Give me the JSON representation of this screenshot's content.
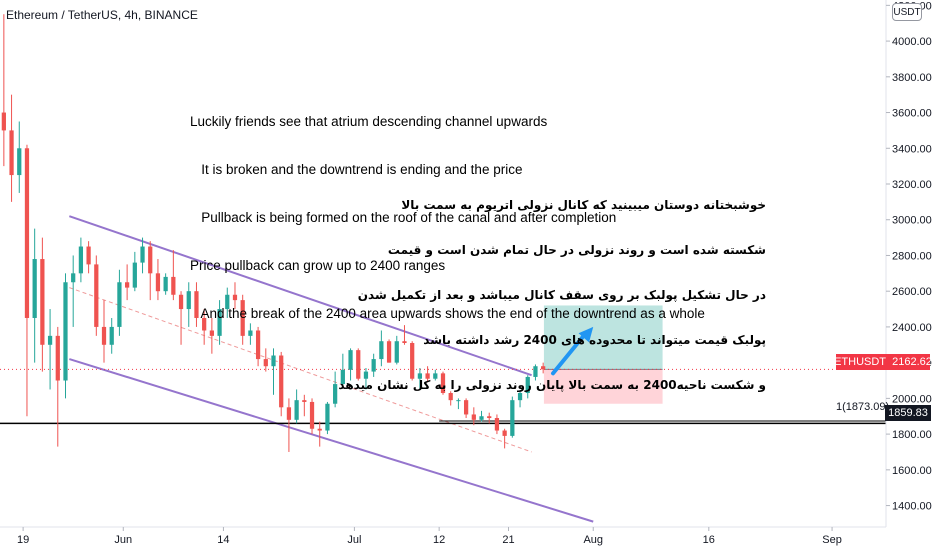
{
  "header": {
    "symbol_title": "Ethereum / TetherUS, 4h, BINANCE",
    "currency_label": "USDT"
  },
  "chart_data": {
    "type": "candlestick",
    "symbol": "Ethereum / TetherUS",
    "interval": "4h",
    "exchange": "BINANCE",
    "currency": "USDT",
    "grid": false,
    "y_ticks": [
      1400,
      1600,
      1800,
      2000,
      2200,
      2400,
      2600,
      2800,
      3000,
      3200,
      3400,
      3600,
      3800,
      4000,
      4200
    ],
    "y_tick_labels": [
      "1400.00",
      "1600.00",
      "1800.00",
      "2000.00",
      "2200.00",
      "2400.00",
      "2600.00",
      "2800.00",
      "3000.00",
      "3200.00",
      "3400.00",
      "3600.00",
      "3800.00",
      "4000.00",
      "4200.00"
    ],
    "x_ticks": [
      {
        "label": "19",
        "date": "2021-05-19"
      },
      {
        "label": "Jun",
        "date": "2021-06-01"
      },
      {
        "label": "14",
        "date": "2021-06-14"
      },
      {
        "label": "Jul",
        "date": "2021-07-01"
      },
      {
        "label": "12",
        "date": "2021-07-12"
      },
      {
        "label": "21",
        "date": "2021-07-21"
      },
      {
        "label": "Aug",
        "date": "2021-08-01"
      },
      {
        "label": "16",
        "date": "2021-08-16"
      },
      {
        "label": "Sep",
        "date": "2021-09-01"
      }
    ],
    "x_range": [
      "2021-05-16",
      "2021-09-08"
    ],
    "y_range": [
      1280,
      4230
    ],
    "candles": [
      [
        "2021-05-16",
        3600,
        4150,
        3300,
        3500
      ],
      [
        "2021-05-17",
        3500,
        3700,
        3100,
        3250
      ],
      [
        "2021-05-18",
        3250,
        3550,
        3150,
        3400
      ],
      [
        "2021-05-19",
        3400,
        3420,
        1900,
        2450
      ],
      [
        "2021-05-20",
        2450,
        2950,
        2200,
        2780
      ],
      [
        "2021-05-21",
        2780,
        2900,
        2150,
        2300
      ],
      [
        "2021-05-22",
        2300,
        2500,
        2050,
        2350
      ],
      [
        "2021-05-23",
        2350,
        2400,
        1730,
        2100
      ],
      [
        "2021-05-24",
        2100,
        2700,
        2000,
        2650
      ],
      [
        "2021-05-25",
        2650,
        2800,
        2400,
        2700
      ],
      [
        "2021-05-26",
        2700,
        2900,
        2650,
        2850
      ],
      [
        "2021-05-27",
        2850,
        2880,
        2700,
        2750
      ],
      [
        "2021-05-28",
        2750,
        2800,
        2350,
        2400
      ],
      [
        "2021-05-29",
        2400,
        2550,
        2200,
        2300
      ],
      [
        "2021-05-30",
        2300,
        2450,
        2250,
        2400
      ],
      [
        "2021-05-31",
        2400,
        2720,
        2350,
        2650
      ],
      [
        "2021-06-01",
        2650,
        2750,
        2550,
        2620
      ],
      [
        "2021-06-02",
        2620,
        2820,
        2600,
        2760
      ],
      [
        "2021-06-03",
        2760,
        2900,
        2700,
        2850
      ],
      [
        "2021-06-04",
        2850,
        2880,
        2550,
        2700
      ],
      [
        "2021-06-05",
        2700,
        2780,
        2550,
        2600
      ],
      [
        "2021-06-06",
        2600,
        2700,
        2580,
        2680
      ],
      [
        "2021-06-07",
        2680,
        2830,
        2550,
        2580
      ],
      [
        "2021-06-08",
        2580,
        2600,
        2300,
        2500
      ],
      [
        "2021-06-09",
        2500,
        2650,
        2400,
        2600
      ],
      [
        "2021-06-10",
        2600,
        2650,
        2400,
        2450
      ],
      [
        "2021-06-11",
        2450,
        2500,
        2300,
        2380
      ],
      [
        "2021-06-12",
        2380,
        2450,
        2250,
        2350
      ],
      [
        "2021-06-13",
        2350,
        2550,
        2300,
        2500
      ],
      [
        "2021-06-14",
        2500,
        2620,
        2450,
        2580
      ],
      [
        "2021-06-15",
        2580,
        2650,
        2500,
        2550
      ],
      [
        "2021-06-16",
        2550,
        2580,
        2300,
        2350
      ],
      [
        "2021-06-17",
        2350,
        2420,
        2300,
        2380
      ],
      [
        "2021-06-18",
        2380,
        2400,
        2180,
        2220
      ],
      [
        "2021-06-19",
        2220,
        2280,
        2150,
        2180
      ],
      [
        "2021-06-20",
        2180,
        2280,
        2020,
        2240
      ],
      [
        "2021-06-21",
        2240,
        2260,
        1900,
        1950
      ],
      [
        "2021-06-22",
        1950,
        2000,
        1700,
        1880
      ],
      [
        "2021-06-23",
        1880,
        2050,
        1860,
        1990
      ],
      [
        "2021-06-24",
        1990,
        2020,
        1900,
        1980
      ],
      [
        "2021-06-25",
        1980,
        2000,
        1800,
        1830
      ],
      [
        "2021-06-26",
        1830,
        1870,
        1730,
        1820
      ],
      [
        "2021-06-27",
        1820,
        1980,
        1800,
        1970
      ],
      [
        "2021-06-28",
        1970,
        2150,
        1950,
        2080
      ],
      [
        "2021-06-29",
        2080,
        2250,
        2060,
        2160
      ],
      [
        "2021-06-30",
        2160,
        2280,
        2100,
        2270
      ],
      [
        "2021-07-01",
        2270,
        2280,
        2100,
        2110
      ],
      [
        "2021-07-02",
        2110,
        2170,
        2050,
        2150
      ],
      [
        "2021-07-03",
        2150,
        2250,
        2120,
        2220
      ],
      [
        "2021-07-04",
        2220,
        2380,
        2180,
        2320
      ],
      [
        "2021-07-05",
        2320,
        2330,
        2200,
        2200
      ],
      [
        "2021-07-06",
        2200,
        2350,
        2190,
        2320
      ],
      [
        "2021-07-07",
        2320,
        2410,
        2300,
        2310
      ],
      [
        "2021-07-08",
        2310,
        2320,
        2100,
        2110
      ],
      [
        "2021-07-09",
        2110,
        2170,
        2050,
        2140
      ],
      [
        "2021-07-10",
        2140,
        2180,
        2090,
        2110
      ],
      [
        "2021-07-11",
        2110,
        2160,
        2100,
        2140
      ],
      [
        "2021-07-12",
        2140,
        2150,
        2020,
        2030
      ],
      [
        "2021-07-13",
        2030,
        2040,
        1960,
        1990
      ],
      [
        "2021-07-14",
        1990,
        2000,
        1940,
        1990
      ],
      [
        "2021-07-15",
        1990,
        2000,
        1890,
        1910
      ],
      [
        "2021-07-16",
        1910,
        1950,
        1850,
        1880
      ],
      [
        "2021-07-17",
        1880,
        1930,
        1870,
        1900
      ],
      [
        "2021-07-18",
        1900,
        1920,
        1860,
        1890
      ],
      [
        "2021-07-19",
        1890,
        1910,
        1800,
        1820
      ],
      [
        "2021-07-20",
        1820,
        1830,
        1720,
        1790
      ],
      [
        "2021-07-21",
        1790,
        2010,
        1780,
        1990
      ],
      [
        "2021-07-22",
        1990,
        2040,
        1950,
        2030
      ],
      [
        "2021-07-23",
        2030,
        2130,
        2000,
        2120
      ],
      [
        "2021-07-24",
        2120,
        2190,
        2100,
        2180
      ],
      [
        "2021-07-25",
        2180,
        2200,
        2140,
        2162.62
      ]
    ],
    "current_price": 2162.62,
    "current_price_label": "2162.62",
    "current_label": "ETHUSDT",
    "horizontal_level": 1859.83,
    "horizontal_level_label": "1859.83",
    "level_annotation": "1(1873.09)",
    "channel": {
      "upper": [
        [
          "2021-05-25",
          3020
        ],
        [
          "2021-07-24",
          2130
        ]
      ],
      "lower": [
        [
          "2021-05-25",
          2220
        ],
        [
          "2021-08-01",
          1310
        ]
      ],
      "midline": [
        [
          "2021-05-25",
          2620
        ],
        [
          "2021-07-24",
          1700
        ]
      ],
      "color": "#9575cd"
    },
    "position": {
      "entry": 2162.62,
      "target": 2520,
      "stop": 1970,
      "start": "2021-07-25",
      "end": "2021-08-10",
      "profit_color": "#b2dfdb",
      "loss_color": "#ffcdd2"
    },
    "arrow": {
      "from": [
        "2021-07-26",
        2140
      ],
      "to": [
        "2021-08-01",
        2400
      ],
      "color": "#2196f3"
    },
    "colors": {
      "up": "#26a69a",
      "down": "#ef5350",
      "axis_text": "#131722"
    }
  },
  "annotations": {
    "english": [
      "Luckily friends see that atrium descending channel upwards",
      "   It is broken and the downtrend is ending and the price",
      "   Pullback is being formed on the roof of the canal and after completion",
      "Price pullback can grow up to 2400 ranges",
      "   And the break of the 2400 area upwards shows the end of the downtrend as a whole"
    ],
    "persian": [
      "خوشبختانه دوستان میبینید که کانال نزولی اتریوم به سمت بالا",
      "شکسته شده است و روند نزولی در حال تمام شدن است و قیمت",
      "در حال تشکیل پولبک بر روی سقف کانال میباشد و بعد از تکمیل شدن",
      "پولبک قیمت میتواند تا محدوده های 2400 رشد داشته باشد",
      "و شکست ناحیه2400 به سمت بالا پایان روند نزولی را به کل نشان میدهد"
    ]
  }
}
